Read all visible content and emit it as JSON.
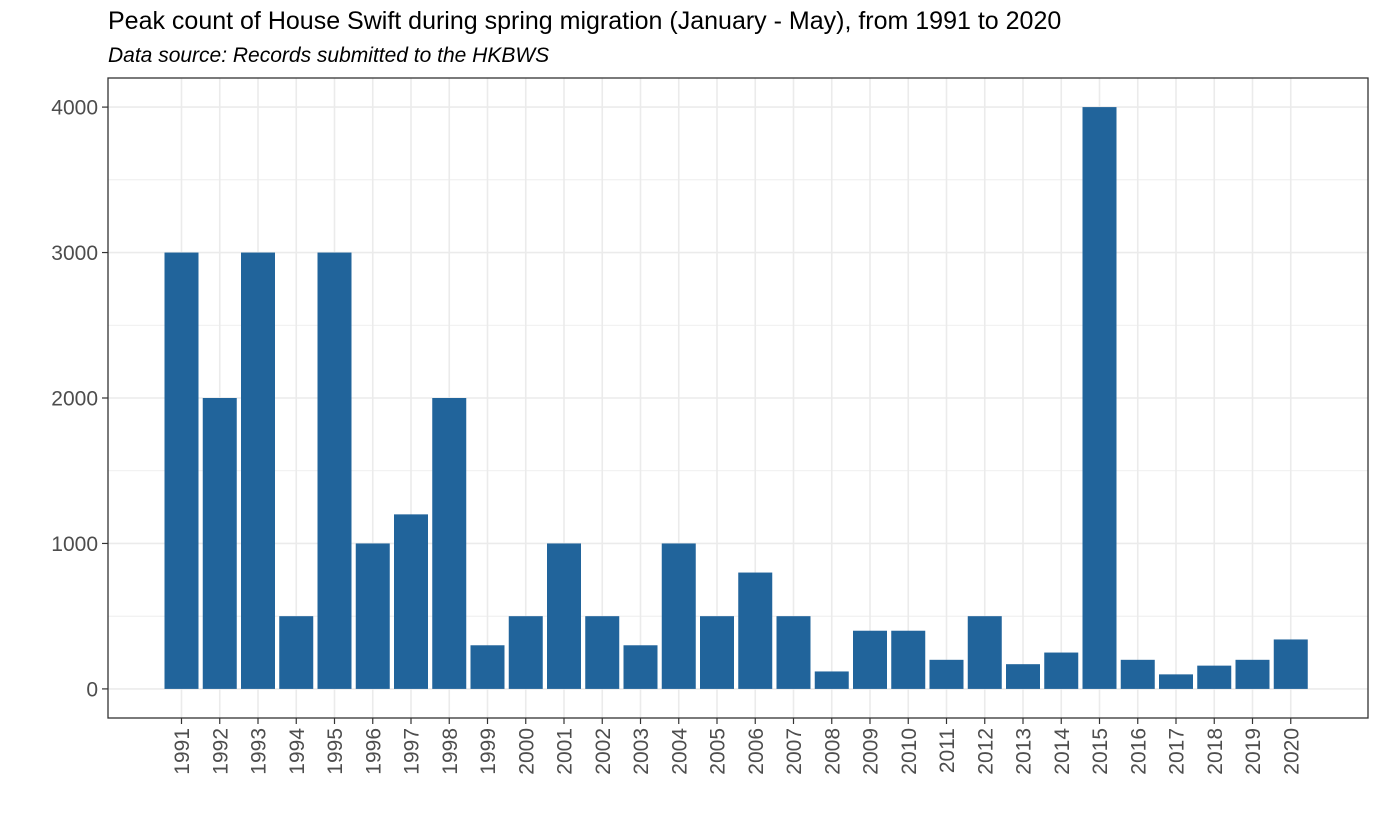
{
  "colors": {
    "bar": "#21649B",
    "grid": "#EBEBEB",
    "panel_border": "#333333",
    "tick_text": "#4D4D4D"
  },
  "chart_data": {
    "type": "bar",
    "title": "Peak count of House Swift during spring migration (January - May), from 1991 to 2020",
    "subtitle": "Data source: Records submitted to the HKBWS",
    "xlabel": "",
    "ylabel": "",
    "categories": [
      "1991",
      "1992",
      "1993",
      "1994",
      "1995",
      "1996",
      "1997",
      "1998",
      "1999",
      "2000",
      "2001",
      "2002",
      "2003",
      "2004",
      "2005",
      "2006",
      "2007",
      "2008",
      "2009",
      "2010",
      "2011",
      "2012",
      "2013",
      "2014",
      "2015",
      "2016",
      "2017",
      "2018",
      "2019",
      "2020"
    ],
    "values": [
      3000,
      2000,
      3000,
      500,
      3000,
      1000,
      1200,
      2000,
      300,
      500,
      1000,
      500,
      300,
      1000,
      500,
      800,
      500,
      120,
      400,
      400,
      200,
      500,
      170,
      250,
      4000,
      200,
      100,
      160,
      200,
      340
    ],
    "y_ticks": [
      0,
      1000,
      2000,
      3000,
      4000
    ],
    "ylim": [
      -200,
      4200
    ],
    "grid": true,
    "legend": "none"
  }
}
